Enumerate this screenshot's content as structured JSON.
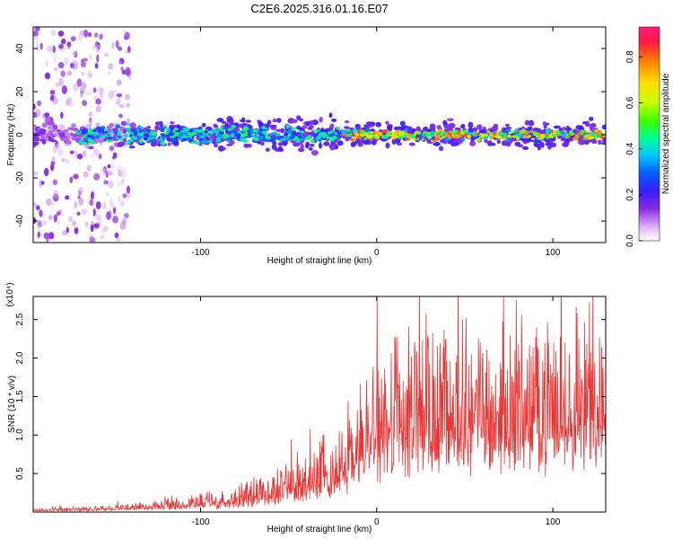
{
  "figure_title": "C2E6.2025.316.01.16.E07",
  "chart_data": [
    {
      "type": "heatmap",
      "name": "spectrogram",
      "xlabel": "Height of straight line (km)",
      "ylabel": "Frequency (Hz)",
      "xlim": [
        -195,
        130
      ],
      "ylim": [
        -50,
        50
      ],
      "xticks": [
        -100,
        0,
        100
      ],
      "yticks": [
        -40,
        -20,
        0,
        20,
        40
      ],
      "xtick_labels": [
        "-100",
        "0",
        "100"
      ],
      "ytick_labels": [
        "-40",
        "-20",
        "0",
        "20",
        "40"
      ],
      "colorbar": {
        "label": "Normalized spectral amplitude",
        "range": [
          0.0,
          0.93
        ],
        "ticks": [
          0.0,
          0.2,
          0.4,
          0.6,
          0.8
        ],
        "tick_labels": [
          "0.0",
          "0.2",
          "0.4",
          "0.6",
          "0.8"
        ],
        "colormap": [
          "#ffffff",
          "#d9a8f5",
          "#8a2be2",
          "#3b1cff",
          "#0060ff",
          "#00c8ff",
          "#00ff90",
          "#3cff00",
          "#c8ff00",
          "#ffdd00",
          "#ff8000",
          "#ff1a40",
          "#ff1a80"
        ]
      },
      "trend": "narrow band centered near 0 Hz (about ±5 Hz) across the whole range, wider scatter below -140 km, strongest amplitudes above -20 km"
    },
    {
      "type": "line",
      "name": "snr",
      "xlabel": "Height of straight line (km)",
      "ylabel": "SNR (10 * v/v)",
      "y_scale_label": "(x10⁴)",
      "xlim": [
        -195,
        130
      ],
      "ylim": [
        0.0,
        2.8
      ],
      "xticks": [
        -100,
        0,
        100
      ],
      "yticks": [
        0.5,
        1.0,
        1.5,
        2.0,
        2.5
      ],
      "xtick_labels": [
        "-100",
        "0",
        "100"
      ],
      "ytick_labels": [
        "0.5",
        "1.0",
        "1.5",
        "2.0",
        "2.5"
      ],
      "color": "#ee3333",
      "envelope": {
        "x": [
          -195,
          -160,
          -140,
          -120,
          -100,
          -80,
          -60,
          -40,
          -20,
          -10,
          0,
          20,
          40,
          60,
          80,
          100,
          115,
          130
        ],
        "baseline": [
          0.02,
          0.03,
          0.04,
          0.06,
          0.08,
          0.12,
          0.18,
          0.28,
          0.45,
          0.6,
          0.8,
          1.0,
          1.05,
          1.1,
          1.1,
          1.15,
          1.15,
          1.1
        ],
        "amplitude": [
          0.03,
          0.06,
          0.08,
          0.12,
          0.18,
          0.28,
          0.4,
          0.55,
          0.9,
          1.1,
          1.4,
          1.7,
          1.5,
          1.6,
          1.4,
          1.5,
          1.7,
          1.4
        ]
      }
    }
  ]
}
